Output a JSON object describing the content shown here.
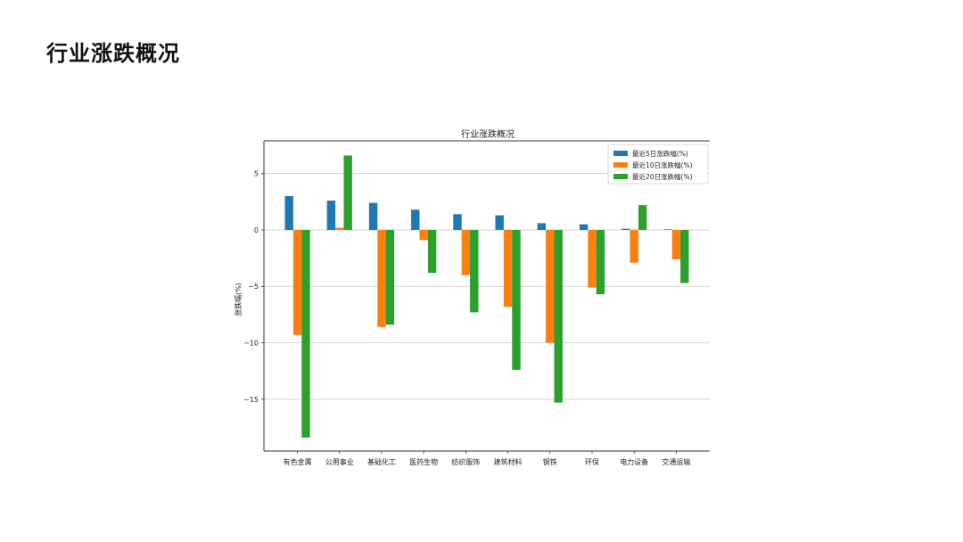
{
  "page": {
    "title": "行业涨跌概况"
  },
  "chart_data": {
    "type": "bar",
    "title": "行业涨跌概况",
    "xlabel": "",
    "ylabel": "涨跌幅(%)",
    "ylim": [
      -19.6,
      7.9
    ],
    "yticks": [
      5,
      0,
      -5,
      -10,
      -15
    ],
    "grid": "horizontal",
    "legend_position": "top-right",
    "categories": [
      "有色金属",
      "公用事业",
      "基础化工",
      "医药生物",
      "纺织服饰",
      "建筑材料",
      "钢铁",
      "环保",
      "电力设备",
      "交通运输"
    ],
    "series": [
      {
        "name": "最近5日涨跌幅(%)",
        "color": "#1f77b4",
        "values": [
          3.0,
          2.6,
          2.4,
          1.8,
          1.4,
          1.3,
          0.6,
          0.5,
          0.1,
          0.05
        ]
      },
      {
        "name": "最近10日涨跌幅(%)",
        "color": "#ff7f0e",
        "values": [
          -9.3,
          0.2,
          -8.6,
          -0.9,
          -4.0,
          -6.8,
          -10.0,
          -5.1,
          -2.9,
          -2.6
        ]
      },
      {
        "name": "最近20日涨跌幅(%)",
        "color": "#2ca02c",
        "values": [
          -18.4,
          6.6,
          -8.4,
          -3.8,
          -7.3,
          -12.4,
          -15.3,
          -5.7,
          2.2,
          -4.7
        ]
      }
    ]
  }
}
